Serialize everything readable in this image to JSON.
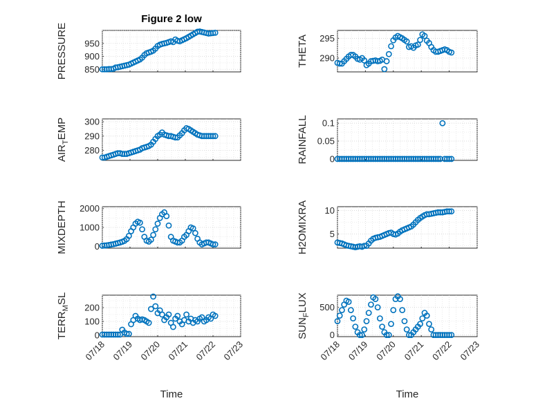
{
  "chart_data": [
    {
      "type": "scatter",
      "title": "Figure 2 low",
      "ylabel": "PRESSURE",
      "ylim": [
        840,
        1000
      ],
      "yticks": [
        850,
        900,
        950
      ],
      "xlim": [
        0,
        5
      ],
      "xticks_shown": false,
      "x": [
        0,
        0.08,
        0.16,
        0.24,
        0.32,
        0.4,
        0.48,
        0.56,
        0.64,
        0.72,
        0.8,
        0.88,
        0.96,
        1.04,
        1.12,
        1.2,
        1.28,
        1.36,
        1.44,
        1.52,
        1.6,
        1.68,
        1.76,
        1.84,
        1.92,
        2.0,
        2.08,
        2.16,
        2.24,
        2.32,
        2.4,
        2.48,
        2.56,
        2.64,
        2.72,
        2.8,
        2.88,
        2.96,
        3.04,
        3.12,
        3.2,
        3.28,
        3.36,
        3.44,
        3.52,
        3.6,
        3.68,
        3.76,
        3.84,
        3.92,
        4.0,
        4.08
      ],
      "y": [
        850,
        850,
        850,
        851,
        851,
        852,
        857,
        858,
        860,
        862,
        864,
        866,
        868,
        872,
        876,
        880,
        884,
        888,
        895,
        905,
        912,
        915,
        918,
        922,
        930,
        940,
        945,
        948,
        950,
        952,
        955,
        958,
        955,
        965,
        960,
        958,
        962,
        966,
        970,
        975,
        980,
        985,
        990,
        995,
        996,
        994,
        992,
        990,
        988,
        989,
        990,
        991
      ]
    },
    {
      "type": "scatter",
      "ylabel": "THETA",
      "ylim": [
        286.5,
        297
      ],
      "yticks": [
        290,
        295
      ],
      "xlim": [
        0,
        5
      ],
      "xticks_shown": false,
      "x": [
        0,
        0.08,
        0.16,
        0.24,
        0.32,
        0.4,
        0.48,
        0.56,
        0.64,
        0.72,
        0.8,
        0.88,
        0.96,
        1.04,
        1.12,
        1.2,
        1.28,
        1.36,
        1.44,
        1.52,
        1.6,
        1.68,
        1.76,
        1.84,
        1.92,
        2.0,
        2.08,
        2.16,
        2.24,
        2.32,
        2.4,
        2.48,
        2.56,
        2.64,
        2.72,
        2.8,
        2.88,
        2.96,
        3.04,
        3.12,
        3.2,
        3.28,
        3.36,
        3.44,
        3.52,
        3.6,
        3.68,
        3.76,
        3.84,
        3.92,
        4.0,
        4.08
      ],
      "y": [
        288.8,
        288.6,
        288.6,
        289.2,
        289.8,
        290.4,
        290.8,
        290.8,
        290.4,
        289.8,
        289.6,
        290.0,
        289.4,
        288.2,
        288.6,
        289.2,
        289.3,
        289.4,
        289.2,
        289.3,
        289.6,
        287.2,
        289.2,
        291.0,
        293.0,
        294.5,
        295.2,
        295.6,
        295.3,
        295.0,
        294.6,
        294.2,
        292.8,
        293.0,
        292.6,
        293.2,
        293.4,
        294.6,
        296.0,
        295.6,
        294.4,
        293.8,
        292.8,
        292.0,
        291.6,
        291.6,
        291.8,
        292.0,
        292.2,
        292.0,
        291.6,
        291.4
      ]
    },
    {
      "type": "scatter",
      "ylabel": "AIR_TEMP",
      "ylim": [
        273,
        302
      ],
      "yticks": [
        280,
        290,
        300
      ],
      "xlim": [
        0,
        5
      ],
      "xticks_shown": false,
      "x": [
        0,
        0.08,
        0.16,
        0.24,
        0.32,
        0.4,
        0.48,
        0.56,
        0.64,
        0.72,
        0.8,
        0.88,
        0.96,
        1.04,
        1.12,
        1.2,
        1.28,
        1.36,
        1.44,
        1.52,
        1.6,
        1.68,
        1.76,
        1.84,
        1.92,
        2.0,
        2.08,
        2.16,
        2.24,
        2.32,
        2.4,
        2.48,
        2.56,
        2.64,
        2.72,
        2.8,
        2.88,
        2.96,
        3.04,
        3.12,
        3.2,
        3.28,
        3.36,
        3.44,
        3.52,
        3.6,
        3.68,
        3.76,
        3.84,
        3.92,
        4.0,
        4.08
      ],
      "y": [
        275,
        275,
        275.5,
        276,
        276.5,
        277,
        277.5,
        278,
        278,
        277.5,
        277.5,
        277.5,
        278,
        278.5,
        279,
        279.5,
        280,
        280.5,
        281.5,
        282,
        282.5,
        283,
        284,
        286,
        288,
        290,
        291,
        292.5,
        291,
        290.5,
        290,
        290,
        289.5,
        289,
        289,
        290.5,
        292,
        294,
        295.5,
        295,
        294,
        293,
        292,
        291,
        290.5,
        290,
        290,
        290,
        290,
        290,
        290,
        290
      ]
    },
    {
      "type": "scatter",
      "ylabel": "RAINFALL",
      "ylim": [
        -0.004,
        0.112
      ],
      "yticks": [
        0,
        0.05,
        0.1
      ],
      "ytick_labels": [
        "0",
        "0.05",
        "0.1"
      ],
      "xlim": [
        0,
        5
      ],
      "xticks_shown": false,
      "x": [
        0,
        0.08,
        0.16,
        0.24,
        0.32,
        0.4,
        0.48,
        0.56,
        0.64,
        0.72,
        0.8,
        0.88,
        0.96,
        1.04,
        1.12,
        1.2,
        1.28,
        1.36,
        1.44,
        1.52,
        1.6,
        1.68,
        1.76,
        1.84,
        1.92,
        2.0,
        2.08,
        2.16,
        2.24,
        2.32,
        2.4,
        2.48,
        2.56,
        2.64,
        2.72,
        2.8,
        2.88,
        2.96,
        3.04,
        3.12,
        3.2,
        3.28,
        3.36,
        3.44,
        3.52,
        3.6,
        3.68,
        3.76,
        3.84,
        3.92,
        4.0,
        4.08
      ],
      "y": [
        0,
        0,
        0,
        0,
        0,
        0,
        0,
        0,
        0,
        0,
        0,
        0,
        0,
        0,
        0,
        0,
        0,
        0,
        0,
        0,
        0,
        0,
        0,
        0,
        0,
        0,
        0,
        0,
        0,
        0,
        0,
        0,
        0,
        0,
        0,
        0,
        0,
        0,
        0,
        0,
        0,
        0,
        0,
        0,
        0,
        0,
        0,
        0.1,
        0,
        0,
        0,
        0
      ]
    },
    {
      "type": "scatter",
      "ylabel": "MIXDEPTH",
      "ylim": [
        -100,
        2100
      ],
      "yticks": [
        0,
        1000,
        2000
      ],
      "xlim": [
        0,
        5
      ],
      "xticks_shown": false,
      "x": [
        0,
        0.08,
        0.16,
        0.24,
        0.32,
        0.4,
        0.48,
        0.56,
        0.64,
        0.72,
        0.8,
        0.88,
        0.96,
        1.04,
        1.12,
        1.2,
        1.28,
        1.36,
        1.44,
        1.52,
        1.6,
        1.68,
        1.76,
        1.84,
        1.92,
        2.0,
        2.08,
        2.16,
        2.24,
        2.32,
        2.4,
        2.48,
        2.56,
        2.64,
        2.72,
        2.8,
        2.88,
        2.96,
        3.04,
        3.12,
        3.2,
        3.28,
        3.36,
        3.44,
        3.52,
        3.6,
        3.68,
        3.76,
        3.84,
        3.92,
        4.0,
        4.08
      ],
      "y": [
        30,
        40,
        50,
        70,
        90,
        110,
        140,
        170,
        200,
        240,
        290,
        380,
        550,
        800,
        1000,
        1200,
        1300,
        1250,
        900,
        500,
        300,
        250,
        350,
        600,
        900,
        1200,
        1500,
        1700,
        1800,
        1600,
        1100,
        500,
        300,
        250,
        200,
        200,
        300,
        500,
        600,
        800,
        1000,
        950,
        700,
        400,
        200,
        100,
        150,
        200,
        200,
        150,
        100,
        100
      ]
    },
    {
      "type": "scatter",
      "ylabel": "H2OMIXRA",
      "ylim": [
        2,
        10.8
      ],
      "yticks": [
        5,
        10
      ],
      "xlim": [
        0,
        5
      ],
      "xticks_shown": false,
      "x": [
        0,
        0.08,
        0.16,
        0.24,
        0.32,
        0.4,
        0.48,
        0.56,
        0.64,
        0.72,
        0.8,
        0.88,
        0.96,
        1.04,
        1.12,
        1.2,
        1.28,
        1.36,
        1.44,
        1.52,
        1.6,
        1.68,
        1.76,
        1.84,
        1.92,
        2.0,
        2.08,
        2.16,
        2.24,
        2.32,
        2.4,
        2.48,
        2.56,
        2.64,
        2.72,
        2.8,
        2.88,
        2.96,
        3.04,
        3.12,
        3.2,
        3.28,
        3.36,
        3.44,
        3.52,
        3.6,
        3.68,
        3.76,
        3.84,
        3.92,
        4.0,
        4.08
      ],
      "y": [
        3.2,
        3.1,
        3.0,
        2.8,
        2.6,
        2.5,
        2.4,
        2.3,
        2.2,
        2.3,
        2.4,
        2.3,
        2.5,
        2.5,
        3.0,
        3.6,
        4.0,
        4.2,
        4.3,
        4.4,
        4.6,
        4.8,
        5.0,
        5.2,
        5.3,
        5.0,
        4.9,
        5.1,
        5.5,
        5.8,
        6.0,
        6.2,
        6.4,
        6.6,
        7.0,
        7.5,
        8.0,
        8.4,
        8.7,
        9.0,
        9.2,
        9.2,
        9.3,
        9.4,
        9.5,
        9.6,
        9.6,
        9.6,
        9.7,
        9.8,
        9.8,
        9.8
      ]
    },
    {
      "type": "scatter",
      "ylabel": "TERR_MSL",
      "ylim": [
        -10,
        290
      ],
      "yticks": [
        0,
        100,
        200
      ],
      "xlim": [
        0,
        5
      ],
      "xticks": [
        0,
        1,
        2,
        3,
        4,
        5
      ],
      "xtick_labels": [
        "07/18",
        "07/19",
        "07/20",
        "07/21",
        "07/22",
        "07/23"
      ],
      "xlabel": "Time",
      "x": [
        0,
        0.08,
        0.16,
        0.24,
        0.32,
        0.4,
        0.48,
        0.56,
        0.64,
        0.72,
        0.8,
        0.88,
        0.96,
        1.04,
        1.12,
        1.2,
        1.28,
        1.36,
        1.44,
        1.52,
        1.6,
        1.68,
        1.76,
        1.84,
        1.92,
        2.0,
        2.08,
        2.16,
        2.24,
        2.32,
        2.4,
        2.48,
        2.56,
        2.64,
        2.72,
        2.8,
        2.88,
        2.96,
        3.04,
        3.12,
        3.2,
        3.28,
        3.36,
        3.44,
        3.52,
        3.6,
        3.68,
        3.76,
        3.84,
        3.92,
        4.0,
        4.08
      ],
      "y": [
        5,
        5,
        5,
        5,
        5,
        5,
        5,
        5,
        5,
        40,
        20,
        10,
        10,
        80,
        110,
        140,
        120,
        110,
        115,
        110,
        100,
        90,
        190,
        280,
        210,
        160,
        180,
        150,
        110,
        130,
        150,
        90,
        60,
        120,
        140,
        100,
        80,
        110,
        150,
        100,
        120,
        90,
        110,
        100,
        120,
        130,
        100,
        110,
        130,
        120,
        150,
        140
      ]
    },
    {
      "type": "scatter",
      "ylabel": "SUN_FLUX",
      "ylim": [
        -30,
        720
      ],
      "yticks": [
        0,
        500
      ],
      "xlim": [
        0,
        5
      ],
      "xticks": [
        0,
        1,
        2,
        3,
        4,
        5
      ],
      "xtick_labels": [
        "07/18",
        "07/19",
        "07/20",
        "07/21",
        "07/22",
        "07/23"
      ],
      "xlabel": "Time",
      "x": [
        0,
        0.08,
        0.16,
        0.24,
        0.32,
        0.4,
        0.48,
        0.56,
        0.64,
        0.72,
        0.8,
        0.88,
        0.96,
        1.04,
        1.12,
        1.2,
        1.28,
        1.36,
        1.44,
        1.52,
        1.6,
        1.68,
        1.76,
        1.84,
        1.92,
        2.0,
        2.08,
        2.16,
        2.24,
        2.32,
        2.4,
        2.48,
        2.56,
        2.64,
        2.72,
        2.8,
        2.88,
        2.96,
        3.04,
        3.12,
        3.2,
        3.28,
        3.36,
        3.44,
        3.52,
        3.6,
        3.68,
        3.76,
        3.84,
        3.92,
        4.0,
        4.08
      ],
      "y": [
        250,
        350,
        450,
        550,
        620,
        600,
        450,
        300,
        150,
        50,
        0,
        0,
        100,
        250,
        400,
        550,
        680,
        650,
        500,
        300,
        150,
        50,
        0,
        0,
        200,
        450,
        650,
        700,
        650,
        450,
        250,
        100,
        0,
        0,
        50,
        100,
        150,
        200,
        300,
        400,
        350,
        200,
        100,
        0,
        0,
        0,
        0,
        0,
        0,
        0,
        0,
        0
      ]
    }
  ]
}
